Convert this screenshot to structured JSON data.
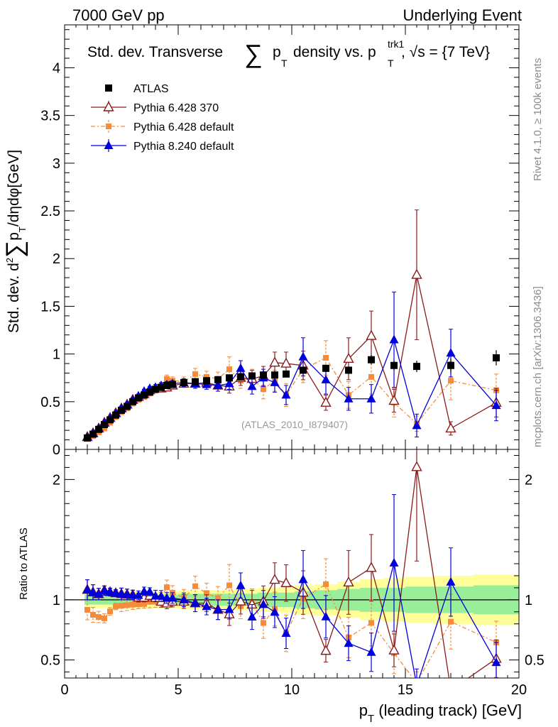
{
  "header": {
    "left_label": "7000 GeV pp",
    "right_label": "Underlying Event"
  },
  "side_labels": {
    "rivet": "Rivet 4.1.0, ≥ 100k events",
    "mcplots": "mcplots.cern.ch [arXiv:1306.3436]"
  },
  "chart_data": {
    "type": "scatter",
    "title": {
      "text1": "Std. dev. Transverse",
      "sum": "∑",
      "p": "p",
      "sub_T": "T",
      "text2": "density vs. p",
      "sup_trk1": "trk1",
      "sub_T2": "T",
      "text3": ", √s = {7 TeV}"
    },
    "analysis_label": "(ATLAS_2010_I879407)",
    "xlabel": {
      "p": "p",
      "sub": "T",
      "rest": " (leading track) [GeV]"
    },
    "ylabel_main": {
      "part1": "Std. dev. d",
      "sup": "2",
      "sum": "∑",
      "p": "p",
      "sub": "T",
      "part2": "/dηdφ[GeV]"
    },
    "ylabel_ratio": "Ratio to ATLAS",
    "xlim": [
      0,
      20
    ],
    "ylim_main": [
      0,
      4.45
    ],
    "ylim_ratio": [
      0.35,
      2.25
    ],
    "x_ticks": [
      "0",
      "5",
      "10",
      "15",
      "20"
    ],
    "y_ticks_main": [
      "0",
      "0.5",
      "1",
      "1.5",
      "2",
      "2.5",
      "3",
      "3.5",
      "4"
    ],
    "y_ticks_ratio": [
      "0.5",
      "1",
      "2"
    ],
    "legend": [
      {
        "label": "ATLAS",
        "color": "#000000"
      },
      {
        "label": "Pythia 6.428 370",
        "color": "#8b1a1a"
      },
      {
        "label": "Pythia 6.428 default",
        "color": "#f58c3c"
      },
      {
        "label": "Pythia 8.240 default",
        "color": "#0000dd"
      }
    ],
    "x": [
      1.0,
      1.25,
      1.5,
      1.75,
      2.0,
      2.25,
      2.5,
      2.75,
      3.0,
      3.25,
      3.5,
      3.75,
      4.0,
      4.25,
      4.5,
      4.75,
      5.25,
      5.75,
      6.25,
      6.75,
      7.25,
      7.75,
      8.25,
      8.75,
      9.25,
      9.75,
      10.5,
      11.5,
      12.5,
      13.5,
      14.5,
      15.5,
      17.0,
      19.0
    ],
    "series": [
      {
        "name": "ATLAS",
        "values": [
          0.12,
          0.16,
          0.21,
          0.26,
          0.31,
          0.36,
          0.41,
          0.45,
          0.5,
          0.54,
          0.57,
          0.6,
          0.63,
          0.65,
          0.67,
          0.68,
          0.7,
          0.71,
          0.72,
          0.73,
          0.75,
          0.76,
          0.77,
          0.78,
          0.78,
          0.79,
          0.83,
          0.85,
          0.83,
          0.94,
          0.88,
          0.87,
          0.88,
          0.96
        ],
        "errors": [
          0.01,
          0.01,
          0.01,
          0.01,
          0.01,
          0.01,
          0.01,
          0.01,
          0.01,
          0.01,
          0.01,
          0.01,
          0.01,
          0.01,
          0.01,
          0.01,
          0.01,
          0.01,
          0.01,
          0.02,
          0.02,
          0.02,
          0.02,
          0.02,
          0.02,
          0.03,
          0.03,
          0.04,
          0.04,
          0.05,
          0.05,
          0.06,
          0.07,
          0.08
        ]
      },
      {
        "name": "Pythia 6.428 370",
        "values": [
          0.13,
          0.17,
          0.22,
          0.28,
          0.33,
          0.38,
          0.43,
          0.47,
          0.52,
          0.55,
          0.58,
          0.62,
          0.64,
          0.64,
          0.65,
          0.67,
          0.69,
          0.69,
          0.7,
          0.67,
          0.66,
          0.75,
          0.74,
          0.77,
          0.91,
          0.9,
          0.88,
          0.49,
          0.95,
          1.19,
          0.51,
          1.83,
          0.22,
          0.49
        ],
        "errors": [
          0.01,
          0.01,
          0.01,
          0.01,
          0.01,
          0.01,
          0.02,
          0.02,
          0.02,
          0.02,
          0.02,
          0.02,
          0.02,
          0.03,
          0.03,
          0.03,
          0.04,
          0.05,
          0.05,
          0.06,
          0.07,
          0.08,
          0.09,
          0.1,
          0.11,
          0.12,
          0.15,
          0.08,
          0.22,
          0.26,
          0.12,
          0.68,
          0.07,
          0.15
        ]
      },
      {
        "name": "Pythia 6.428 default",
        "values": [
          0.11,
          0.14,
          0.18,
          0.22,
          0.28,
          0.34,
          0.39,
          0.43,
          0.48,
          0.52,
          0.55,
          0.59,
          0.62,
          0.66,
          0.74,
          0.72,
          0.71,
          0.79,
          0.76,
          0.74,
          0.84,
          0.72,
          0.75,
          0.63,
          0.72,
          0.57,
          0.84,
          0.96,
          0.57,
          0.76,
          0.49,
          0.27,
          0.72,
          0.62
        ],
        "errors": [
          0.01,
          0.01,
          0.01,
          0.01,
          0.01,
          0.01,
          0.02,
          0.02,
          0.02,
          0.02,
          0.02,
          0.03,
          0.03,
          0.03,
          0.04,
          0.04,
          0.05,
          0.06,
          0.06,
          0.07,
          0.13,
          0.08,
          0.09,
          0.1,
          0.11,
          0.12,
          0.14,
          0.18,
          0.14,
          0.18,
          0.15,
          0.08,
          0.2,
          0.17
        ]
      },
      {
        "name": "Pythia 8.240 default",
        "values": [
          0.13,
          0.17,
          0.22,
          0.28,
          0.33,
          0.38,
          0.43,
          0.47,
          0.52,
          0.56,
          0.61,
          0.64,
          0.65,
          0.67,
          0.68,
          0.69,
          0.7,
          0.69,
          0.68,
          0.67,
          0.69,
          0.85,
          0.66,
          0.75,
          0.7,
          0.57,
          0.97,
          0.73,
          0.53,
          0.53,
          1.15,
          0.25,
          1.01,
          0.46
        ],
        "errors": [
          0.01,
          0.01,
          0.01,
          0.01,
          0.01,
          0.01,
          0.02,
          0.02,
          0.02,
          0.02,
          0.02,
          0.02,
          0.03,
          0.03,
          0.03,
          0.03,
          0.04,
          0.05,
          0.05,
          0.06,
          0.06,
          0.08,
          0.08,
          0.09,
          0.1,
          0.1,
          0.2,
          0.15,
          0.12,
          0.15,
          0.5,
          0.12,
          0.25,
          0.16
        ]
      }
    ],
    "ratio_bands": {
      "inner_halfwidth": [
        0.04,
        0.04,
        0.04,
        0.04,
        0.04,
        0.04,
        0.04,
        0.04,
        0.04,
        0.04,
        0.04,
        0.04,
        0.04,
        0.04,
        0.04,
        0.04,
        0.05,
        0.05,
        0.05,
        0.05,
        0.05,
        0.05,
        0.05,
        0.06,
        0.06,
        0.06,
        0.07,
        0.08,
        0.09,
        0.1,
        0.1,
        0.11,
        0.11,
        0.12
      ],
      "outer_halfwidth": [
        0.07,
        0.07,
        0.07,
        0.07,
        0.07,
        0.07,
        0.07,
        0.07,
        0.07,
        0.07,
        0.07,
        0.07,
        0.07,
        0.07,
        0.07,
        0.07,
        0.08,
        0.08,
        0.08,
        0.08,
        0.08,
        0.09,
        0.09,
        0.1,
        0.1,
        0.11,
        0.12,
        0.13,
        0.15,
        0.17,
        0.18,
        0.19,
        0.2,
        0.21
      ]
    }
  }
}
